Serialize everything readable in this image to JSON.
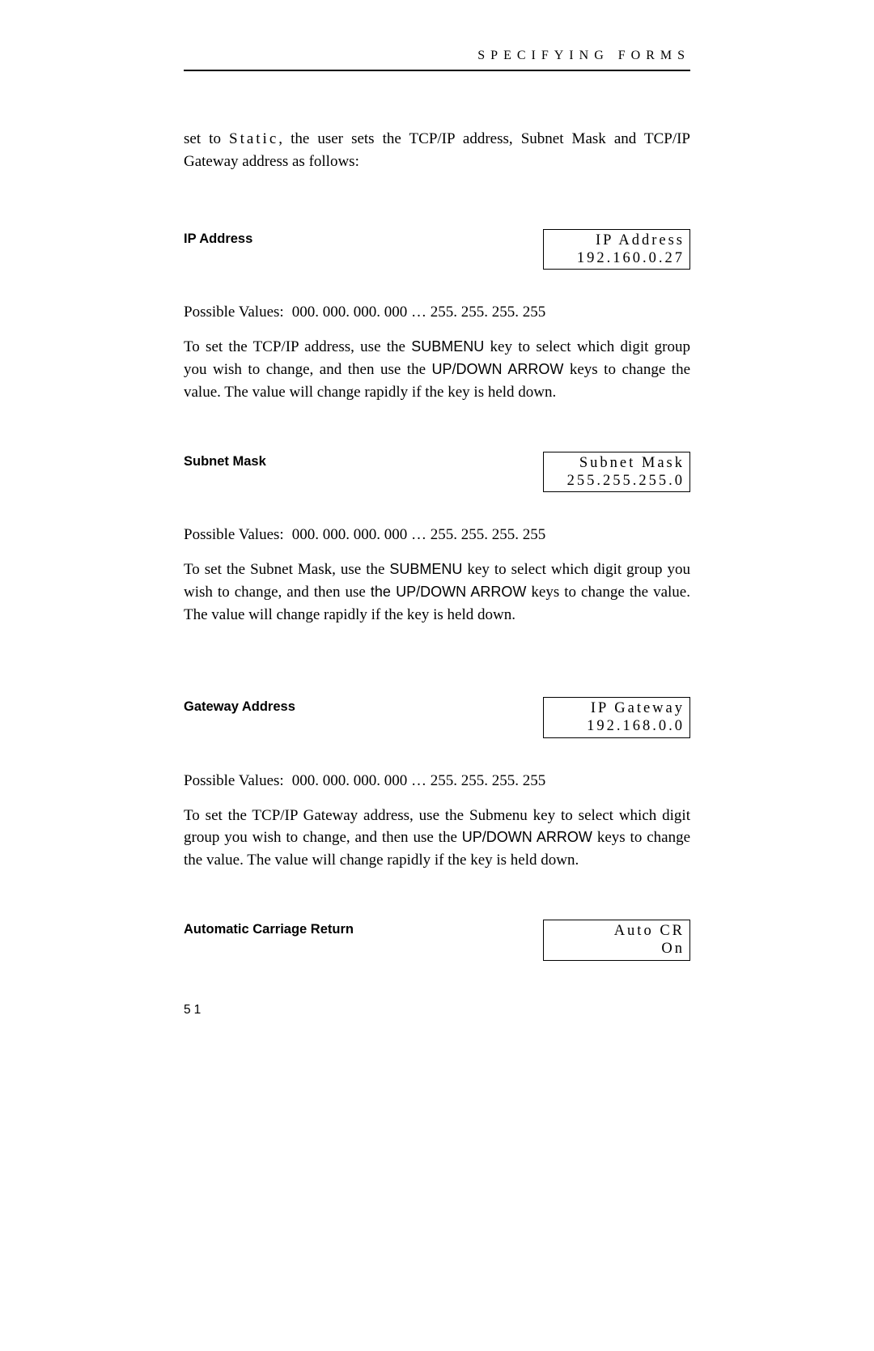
{
  "header": {
    "title": "SPECIFYING FORMS"
  },
  "intro": {
    "text_before": "set to  ",
    "spaced_word": "Static",
    "text_after": ",  the  user sets the TCP/IP address, Subnet Mask and TCP/IP Gateway address as follows:"
  },
  "sections": [
    {
      "label": "IP Address",
      "lcd_line1": "IP Address",
      "lcd_line2": "192.160.0.27",
      "possible_values_label": "Possible Values:",
      "possible_values": "000. 000. 000. 000  … 255. 255. 255. 255",
      "body_parts": [
        {
          "t": "text",
          "v": "To set the TCP/IP address, use the "
        },
        {
          "t": "key",
          "v": "SUBMENU"
        },
        {
          "t": "text",
          "v": " key to select which digit group you wish to change, and then use the  "
        },
        {
          "t": "key",
          "v": "UP/DOWN ARROW"
        },
        {
          "t": "text",
          "v": " keys to change the value.  The value will change rapidly if the key is held down."
        }
      ],
      "extra_gap": false
    },
    {
      "label": "Subnet Mask",
      "lcd_line1": "Subnet Mask",
      "lcd_line2": "255.255.255.0",
      "possible_values_label": "Possible Values:",
      "possible_values": "000. 000. 000. 000  … 255. 255. 255. 255",
      "body_parts": [
        {
          "t": "text",
          "v": "To set the Subnet Mask, use the "
        },
        {
          "t": "key",
          "v": "SUBMENU"
        },
        {
          "t": "text",
          "v": " key to select which digit group you wish to change, and then use "
        },
        {
          "t": "key",
          "v": "the UP/DOWN ARROW"
        },
        {
          "t": "text",
          "v": " keys to change the value.  The value will change rapidly if the key is held down."
        }
      ],
      "extra_gap": true
    },
    {
      "label": "Gateway Address",
      "lcd_line1": "IP Gateway",
      "lcd_line2": "192.168.0.0",
      "possible_values_label": "Possible Values:",
      "possible_values": "000. 000. 000. 000  … 255. 255. 255. 255",
      "body_parts": [
        {
          "t": "text",
          "v": "To set the TCP/IP Gateway address, use the Submenu key to select which digit group you wish to change, and then use the "
        },
        {
          "t": "key",
          "v": "UP/DOWN ARROW"
        },
        {
          "t": "text",
          "v": " keys to change the value.  The value will change rapidly if the key is held down."
        }
      ],
      "extra_gap": false
    },
    {
      "label": "Automatic Carriage Return",
      "lcd_line1": "Auto CR",
      "lcd_line2": "On",
      "possible_values_label": "",
      "possible_values": "",
      "body_parts": [],
      "extra_gap": false
    }
  ],
  "page_number": "51"
}
